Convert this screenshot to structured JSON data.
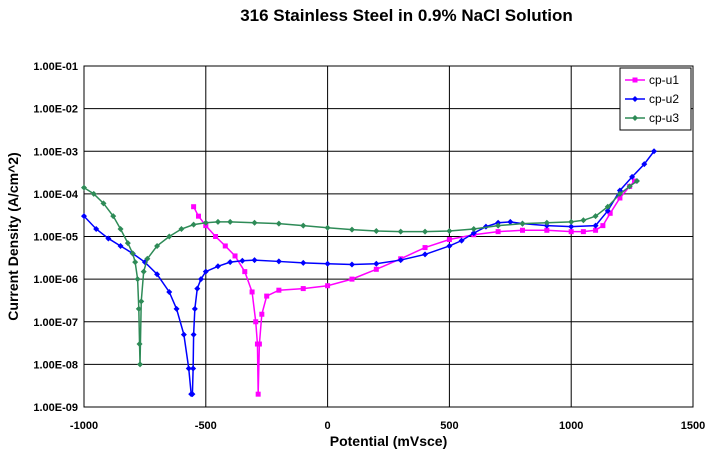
{
  "chart_data": {
    "type": "line",
    "title": "316 Stainless Steel in 0.9% NaCl Solution",
    "xlabel": "Potential (mVsce)",
    "ylabel": "Current Density (A/cm^2)",
    "xlim": [
      -1000,
      1500
    ],
    "x_ticks": [
      -1000,
      -500,
      0,
      500,
      1000,
      1500
    ],
    "x_tick_labels": [
      "-1000",
      "-500",
      "0",
      "500",
      "1000",
      "1500"
    ],
    "y_scale": "log",
    "ylim": [
      1e-09,
      0.1
    ],
    "y_ticks": [
      1e-09,
      1e-08,
      1e-07,
      1e-06,
      1e-05,
      0.0001,
      0.001,
      0.01,
      0.1
    ],
    "y_tick_labels": [
      "1.00E-09",
      "1.00E-08",
      "1.00E-07",
      "1.00E-06",
      "1.00E-05",
      "1.00E-04",
      "1.00E-03",
      "1.00E-02",
      "1.00E-01"
    ],
    "grid": true,
    "legend_position": "top-right",
    "series": [
      {
        "name": "cp-u1",
        "color": "#ff00ff",
        "marker": "square",
        "x": [
          -550,
          -530,
          -500,
          -460,
          -420,
          -380,
          -340,
          -310,
          -295,
          -288,
          -285,
          -280,
          -270,
          -250,
          -200,
          -100,
          0,
          100,
          200,
          300,
          400,
          500,
          600,
          700,
          800,
          900,
          1000,
          1050,
          1100,
          1130,
          1160,
          1200,
          1240,
          1260
        ],
        "y": [
          5e-05,
          3e-05,
          1.8e-05,
          1e-05,
          6e-06,
          3.5e-06,
          1.5e-06,
          5e-07,
          1e-07,
          3e-08,
          2e-09,
          3e-08,
          1.5e-07,
          4e-07,
          5.5e-07,
          6e-07,
          7e-07,
          1e-06,
          1.7e-06,
          3e-06,
          5.5e-06,
          8.5e-06,
          1.1e-05,
          1.3e-05,
          1.4e-05,
          1.4e-05,
          1.3e-05,
          1.3e-05,
          1.4e-05,
          1.8e-05,
          3.5e-05,
          8e-05,
          0.00015,
          0.0002
        ]
      },
      {
        "name": "cp-u2",
        "color": "#0000ff",
        "marker": "diamond",
        "x": [
          -1000,
          -950,
          -900,
          -850,
          -800,
          -750,
          -700,
          -650,
          -620,
          -590,
          -570,
          -560,
          -555,
          -552,
          -550,
          -545,
          -535,
          -520,
          -500,
          -450,
          -400,
          -350,
          -300,
          -200,
          -100,
          0,
          100,
          200,
          300,
          400,
          500,
          550,
          600,
          650,
          700,
          750,
          800,
          900,
          1000,
          1100,
          1150,
          1200,
          1250,
          1300,
          1340
        ],
        "y": [
          3e-05,
          1.5e-05,
          9e-06,
          6e-06,
          4e-06,
          2.5e-06,
          1.3e-06,
          5e-07,
          2e-07,
          5e-08,
          8e-09,
          2e-09,
          2e-09,
          8e-09,
          5e-08,
          2e-07,
          6e-07,
          1e-06,
          1.5e-06,
          2e-06,
          2.5e-06,
          2.7e-06,
          2.8e-06,
          2.6e-06,
          2.4e-06,
          2.3e-06,
          2.2e-06,
          2.3e-06,
          2.8e-06,
          3.8e-06,
          6e-06,
          8e-06,
          1.2e-05,
          1.7e-05,
          2.1e-05,
          2.2e-05,
          2e-05,
          1.8e-05,
          1.7e-05,
          1.8e-05,
          4e-05,
          0.00012,
          0.00025,
          0.0005,
          0.001
        ]
      },
      {
        "name": "cp-u3",
        "color": "#2e8b57",
        "marker": "diamond",
        "x": [
          -1000,
          -960,
          -920,
          -880,
          -850,
          -820,
          -800,
          -790,
          -780,
          -775,
          -772,
          -770,
          -765,
          -755,
          -740,
          -700,
          -650,
          -600,
          -550,
          -500,
          -450,
          -400,
          -300,
          -200,
          -100,
          0,
          100,
          200,
          300,
          400,
          500,
          600,
          700,
          800,
          900,
          1000,
          1050,
          1100,
          1150,
          1200,
          1240,
          1270
        ],
        "y": [
          0.00014,
          0.0001,
          6e-05,
          3e-05,
          1.5e-05,
          7e-06,
          4e-06,
          2.5e-06,
          1e-06,
          2e-07,
          3e-08,
          1e-08,
          3e-07,
          1.5e-06,
          3e-06,
          6e-06,
          1e-05,
          1.5e-05,
          1.9e-05,
          2.1e-05,
          2.2e-05,
          2.2e-05,
          2.1e-05,
          2e-05,
          1.8e-05,
          1.6e-05,
          1.45e-05,
          1.35e-05,
          1.3e-05,
          1.3e-05,
          1.35e-05,
          1.5e-05,
          1.8e-05,
          2e-05,
          2.1e-05,
          2.2e-05,
          2.4e-05,
          3e-05,
          5e-05,
          0.0001,
          0.00015,
          0.0002
        ]
      }
    ]
  }
}
